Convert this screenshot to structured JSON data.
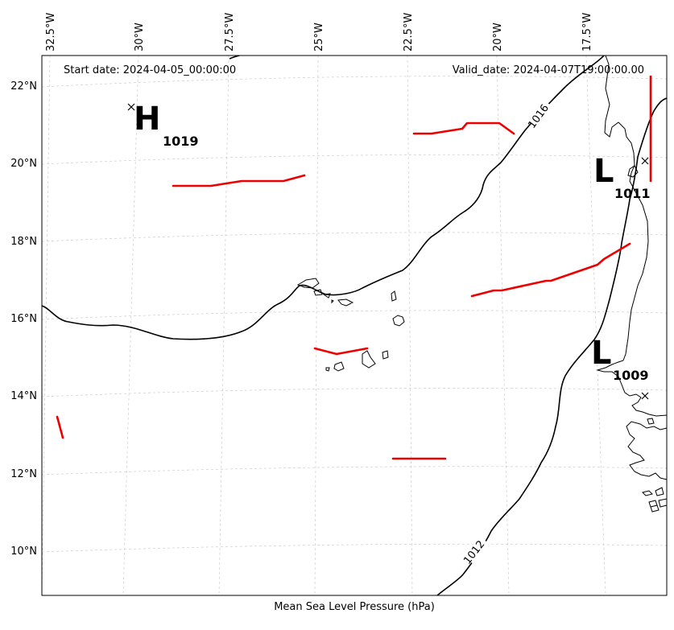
{
  "map": {
    "start_label": "Start date: 2024-04-05_00:00:00",
    "valid_label": "Valid_date: 2024-04-07T19:00:00.00",
    "caption": "Mean Sea Level Pressure (hPa)",
    "lon_ticks": [
      "32.5°W",
      "30°W",
      "27.5°W",
      "25°W",
      "22.5°W",
      "20°W",
      "17.5°W"
    ],
    "lat_ticks": [
      "22°N",
      "20°N",
      "18°N",
      "16°N",
      "14°N",
      "12°N",
      "10°N"
    ],
    "isobar_labels": [
      "1016",
      "1012"
    ],
    "pressure_centers": [
      {
        "type": "H",
        "value": "1019"
      },
      {
        "type": "L",
        "value": "1011"
      },
      {
        "type": "L",
        "value": "1009"
      }
    ],
    "colors": {
      "isobar": "#000000",
      "trough": "#ee0000",
      "grid": "#cccccc",
      "coast": "#000000"
    }
  }
}
